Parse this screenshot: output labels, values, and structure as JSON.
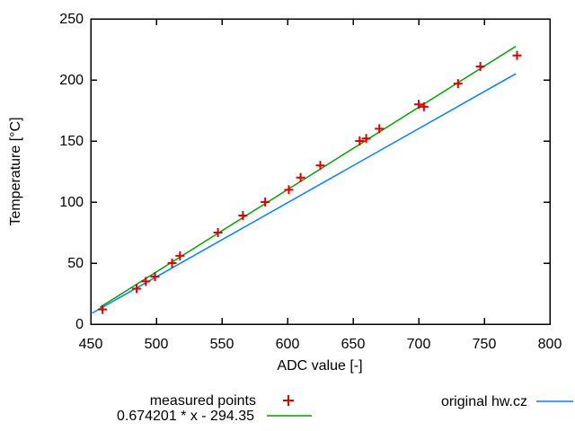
{
  "figure": {
    "background": "#ffffff",
    "border_color": "#000000",
    "text_color": "#000000"
  },
  "chart_data": {
    "type": "scatter",
    "title": "",
    "xlabel": "ADC value [-]",
    "ylabel": "Temperature [°C]",
    "xlim": [
      450,
      800
    ],
    "ylim": [
      0,
      250
    ],
    "xticks": [
      450,
      500,
      550,
      600,
      650,
      700,
      750,
      800
    ],
    "yticks": [
      0,
      50,
      100,
      150,
      200,
      250
    ],
    "grid": false,
    "legend_position": "below-plot",
    "series": [
      {
        "name": "measured points",
        "type": "points",
        "marker": "plus",
        "color": "#dd0000",
        "points": [
          [
            459,
            12
          ],
          [
            485,
            29
          ],
          [
            492,
            35
          ],
          [
            499,
            39
          ],
          [
            512,
            50
          ],
          [
            518,
            56
          ],
          [
            547,
            75
          ],
          [
            566,
            89
          ],
          [
            583,
            100
          ],
          [
            601,
            110
          ],
          [
            610,
            120
          ],
          [
            625,
            130
          ],
          [
            655,
            150
          ],
          [
            660,
            152
          ],
          [
            670,
            160
          ],
          [
            700,
            180
          ],
          [
            704,
            178
          ],
          [
            730,
            197
          ],
          [
            747,
            211
          ],
          [
            775,
            220
          ]
        ]
      },
      {
        "name": "0.674201 * x - 294.35",
        "type": "line",
        "color": "#00a000",
        "slope": 0.674201,
        "intercept": -294.35,
        "x_range": [
          457,
          774
        ]
      },
      {
        "name": "original hw.cz",
        "type": "line",
        "color": "#0080ff",
        "points": [
          [
            451,
            9
          ],
          [
            774,
            205
          ]
        ]
      }
    ]
  },
  "legend": {
    "measured_label": "measured points",
    "fit_label": "0.674201 * x - 294.35",
    "original_label": "original hw.cz"
  }
}
